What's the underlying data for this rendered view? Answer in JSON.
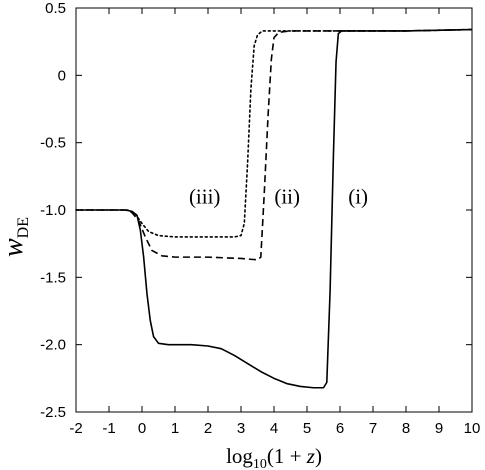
{
  "chart_data": {
    "type": "line",
    "xlabel": {
      "base": "log",
      "sub": "10",
      "rest": "(1 + ",
      "var": "z",
      "close": ")"
    },
    "ylabel": {
      "main": "w",
      "sub": "DE"
    },
    "xlim": [
      -2,
      10
    ],
    "ylim": [
      -2.5,
      0.5
    ],
    "xticks": [
      -2,
      -1,
      0,
      1,
      2,
      3,
      4,
      5,
      6,
      7,
      8,
      9,
      10
    ],
    "yticks": [
      -2.5,
      -2.0,
      -1.5,
      -1.0,
      -0.5,
      0,
      0.5
    ],
    "xtick_labels": [
      "-2",
      "-1",
      "0",
      "1",
      "2",
      "3",
      "4",
      "5",
      "6",
      "7",
      "8",
      "9",
      "10"
    ],
    "ytick_labels": [
      "-2.5",
      "-2.0",
      "-1.5",
      "-1.0",
      "-0.5",
      "0",
      "0.5"
    ],
    "grid": false,
    "annotations": [
      {
        "text": "(iii)",
        "x": 1.9,
        "y": -0.95
      },
      {
        "text": "(ii)",
        "x": 4.4,
        "y": -0.95
      },
      {
        "text": "(i)",
        "x": 6.55,
        "y": -0.95
      }
    ],
    "series": [
      {
        "style": "solid",
        "color": "#000000",
        "points": [
          [
            -2,
            -1.0
          ],
          [
            -1,
            -1.0
          ],
          [
            -0.5,
            -1.0
          ],
          [
            -0.3,
            -1.01
          ],
          [
            -0.15,
            -1.04
          ],
          [
            -0.05,
            -1.15
          ],
          [
            0.05,
            -1.35
          ],
          [
            0.15,
            -1.62
          ],
          [
            0.25,
            -1.82
          ],
          [
            0.35,
            -1.94
          ],
          [
            0.5,
            -1.99
          ],
          [
            0.8,
            -2.0
          ],
          [
            1.5,
            -2.0
          ],
          [
            2.0,
            -2.01
          ],
          [
            2.4,
            -2.03
          ],
          [
            2.8,
            -2.08
          ],
          [
            3.2,
            -2.14
          ],
          [
            3.6,
            -2.2
          ],
          [
            4.0,
            -2.25
          ],
          [
            4.4,
            -2.29
          ],
          [
            4.8,
            -2.31
          ],
          [
            5.2,
            -2.32
          ],
          [
            5.5,
            -2.32
          ],
          [
            5.6,
            -2.28
          ],
          [
            5.7,
            -1.6
          ],
          [
            5.8,
            -0.6
          ],
          [
            5.88,
            0.1
          ],
          [
            5.95,
            0.31
          ],
          [
            6.05,
            0.33
          ],
          [
            7,
            0.33
          ],
          [
            8,
            0.33
          ],
          [
            10,
            0.34
          ]
        ]
      },
      {
        "style": "dashed",
        "color": "#000000",
        "points": [
          [
            -2,
            -1.0
          ],
          [
            -1,
            -1.0
          ],
          [
            -0.5,
            -1.0
          ],
          [
            -0.3,
            -1.02
          ],
          [
            -0.1,
            -1.08
          ],
          [
            0.1,
            -1.2
          ],
          [
            0.3,
            -1.3
          ],
          [
            0.6,
            -1.34
          ],
          [
            1.0,
            -1.35
          ],
          [
            2.0,
            -1.35
          ],
          [
            3.0,
            -1.36
          ],
          [
            3.5,
            -1.37
          ],
          [
            3.6,
            -1.35
          ],
          [
            3.7,
            -0.9
          ],
          [
            3.82,
            -0.3
          ],
          [
            3.92,
            0.12
          ],
          [
            4.0,
            0.28
          ],
          [
            4.15,
            0.32
          ],
          [
            4.5,
            0.33
          ],
          [
            6,
            0.33
          ],
          [
            8,
            0.33
          ],
          [
            10,
            0.34
          ]
        ]
      },
      {
        "style": "dotted",
        "color": "#000000",
        "points": [
          [
            -2,
            -1.0
          ],
          [
            -1,
            -1.0
          ],
          [
            -0.4,
            -1.0
          ],
          [
            -0.2,
            -1.03
          ],
          [
            0.0,
            -1.1
          ],
          [
            0.2,
            -1.16
          ],
          [
            0.5,
            -1.19
          ],
          [
            1.0,
            -1.2
          ],
          [
            2.0,
            -1.2
          ],
          [
            2.8,
            -1.2
          ],
          [
            3.0,
            -1.19
          ],
          [
            3.1,
            -1.1
          ],
          [
            3.2,
            -0.65
          ],
          [
            3.3,
            -0.1
          ],
          [
            3.4,
            0.22
          ],
          [
            3.5,
            0.3
          ],
          [
            3.65,
            0.33
          ],
          [
            4.5,
            0.33
          ],
          [
            6,
            0.33
          ],
          [
            8,
            0.33
          ],
          [
            10,
            0.34
          ]
        ]
      }
    ]
  }
}
